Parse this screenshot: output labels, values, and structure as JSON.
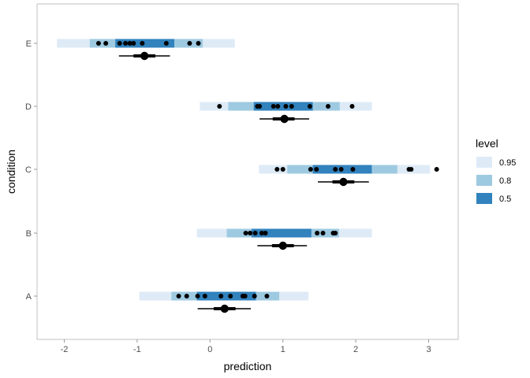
{
  "chart_data": {
    "type": "interval",
    "xlabel": "prediction",
    "ylabel": "condition",
    "xlim": [
      -2.4,
      3.35
    ],
    "x_ticks": [
      -2,
      -1,
      0,
      1,
      2,
      3
    ],
    "x_tick_labels": [
      "-2",
      "-1",
      "0",
      "1",
      "2",
      "3"
    ],
    "categories": [
      "A",
      "B",
      "C",
      "D",
      "E"
    ],
    "legend": {
      "title": "level",
      "position": "right",
      "entries": [
        {
          "label": "0.95",
          "color": "#deebf7"
        },
        {
          "label": "0.8",
          "color": "#9ecae1"
        },
        {
          "label": "0.5",
          "color": "#3182bd"
        }
      ]
    },
    "groups": [
      {
        "condition": "A",
        "predictive_intervals": {
          "0.95": [
            -0.97,
            1.35
          ],
          "0.8": [
            -0.53,
            0.95
          ],
          "0.5": [
            -0.18,
            0.63
          ]
        },
        "observations": [
          -0.43,
          -0.32,
          -0.17,
          -0.07,
          0.15,
          0.28,
          0.45,
          0.48,
          0.61,
          0.78
        ],
        "mean_estimate": 0.2,
        "mean_interval_thick": [
          0.05,
          0.35
        ],
        "mean_interval_thin": [
          -0.17,
          0.56
        ]
      },
      {
        "condition": "B",
        "predictive_intervals": {
          "0.95": [
            -0.18,
            2.22
          ],
          "0.8": [
            0.23,
            1.77
          ],
          "0.5": [
            0.57,
            1.39
          ]
        },
        "observations": [
          0.49,
          0.55,
          0.62,
          0.71,
          0.76,
          1.47,
          1.55,
          1.69,
          1.72
        ],
        "mean_estimate": 1.0,
        "mean_interval_thick": [
          0.85,
          1.15
        ],
        "mean_interval_thin": [
          0.65,
          1.33
        ]
      },
      {
        "condition": "C",
        "predictive_intervals": {
          "0.95": [
            0.67,
            3.02
          ],
          "0.8": [
            1.06,
            2.57
          ],
          "0.5": [
            1.41,
            2.22
          ]
        },
        "observations": [
          0.92,
          1.0,
          1.38,
          1.46,
          1.72,
          1.8,
          1.96,
          2.73,
          2.76,
          3.11
        ],
        "mean_estimate": 1.83,
        "mean_interval_thick": [
          1.68,
          1.98
        ],
        "mean_interval_thin": [
          1.48,
          2.18
        ]
      },
      {
        "condition": "D",
        "predictive_intervals": {
          "0.95": [
            -0.14,
            2.22
          ],
          "0.8": [
            0.25,
            1.78
          ],
          "0.5": [
            0.6,
            1.41
          ]
        },
        "observations": [
          0.13,
          0.65,
          0.68,
          0.87,
          0.93,
          1.04,
          1.12,
          1.37,
          1.62,
          1.95
        ],
        "mean_estimate": 1.02,
        "mean_interval_thick": [
          0.86,
          1.16
        ],
        "mean_interval_thin": [
          0.68,
          1.36
        ]
      },
      {
        "condition": "E",
        "predictive_intervals": {
          "0.95": [
            -2.1,
            0.34
          ],
          "0.8": [
            -1.65,
            -0.1
          ],
          "0.5": [
            -1.3,
            -0.49
          ]
        },
        "observations": [
          -1.53,
          -1.43,
          -1.24,
          -1.16,
          -1.1,
          -1.05,
          -0.93,
          -0.6,
          -0.28,
          -0.16
        ],
        "mean_estimate": -0.9,
        "mean_interval_thick": [
          -1.05,
          -0.75
        ],
        "mean_interval_thin": [
          -1.25,
          -0.55
        ]
      }
    ]
  }
}
